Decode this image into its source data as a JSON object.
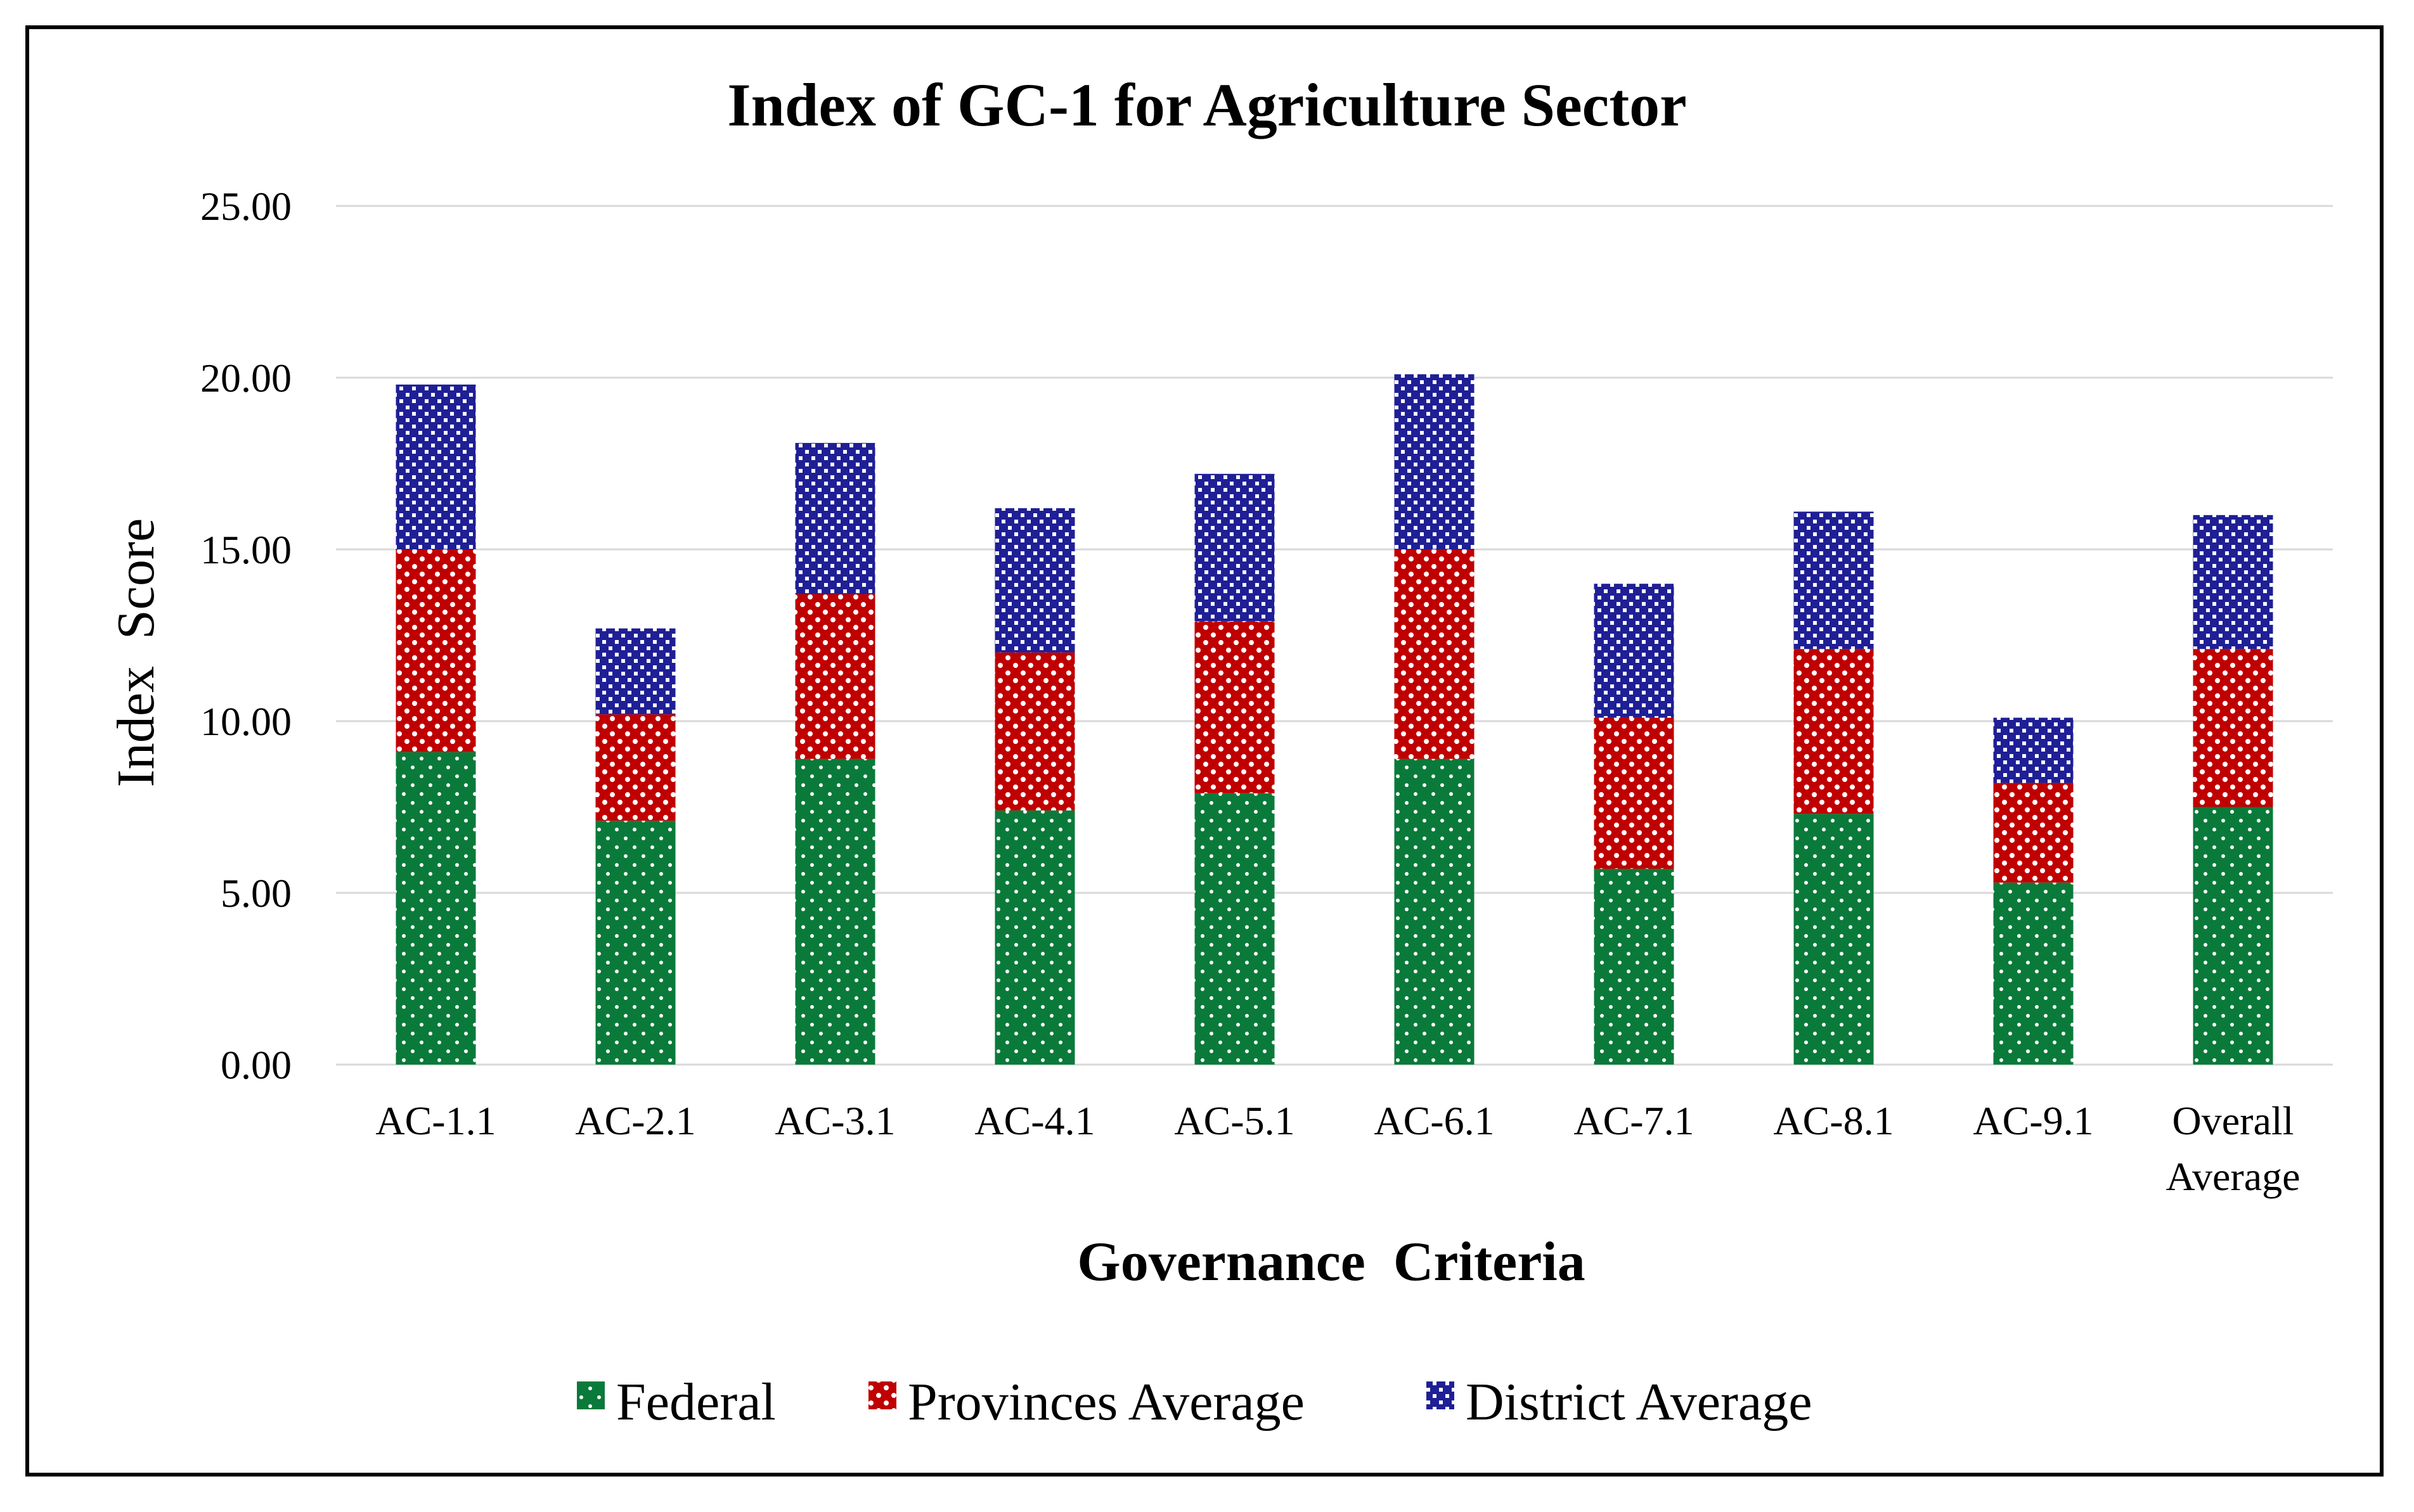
{
  "chart_data": {
    "type": "bar",
    "stacked": true,
    "title": "Index of GC-1 for Agriculture Sector",
    "xlabel": "Governance  Criteria",
    "ylabel": "Index  Score",
    "ylim": [
      0,
      25
    ],
    "yticks": [
      "0.00",
      "5.00",
      "10.00",
      "15.00",
      "20.00",
      "25.00"
    ],
    "categories": [
      "AC-1.1",
      "AC-2.1",
      "AC-3.1",
      "AC-4.1",
      "AC-5.1",
      "AC-6.1",
      "AC-7.1",
      "AC-8.1",
      "AC-9.1",
      "Overall Average"
    ],
    "category_lines": [
      [
        "AC-1.1"
      ],
      [
        "AC-2.1"
      ],
      [
        "AC-3.1"
      ],
      [
        "AC-4.1"
      ],
      [
        "AC-5.1"
      ],
      [
        "AC-6.1"
      ],
      [
        "AC-7.1"
      ],
      [
        "AC-8.1"
      ],
      [
        "AC-9.1"
      ],
      [
        "Overall",
        "Average"
      ]
    ],
    "series": [
      {
        "name": "Federal",
        "color": "#0a7a3a",
        "pattern": "dots",
        "values": [
          9.1,
          7.1,
          8.9,
          7.4,
          7.9,
          8.9,
          5.7,
          7.3,
          5.3,
          7.5
        ]
      },
      {
        "name": "Provinces Average",
        "color": "#c00000",
        "pattern": "checker",
        "values": [
          5.9,
          3.1,
          4.8,
          4.6,
          5.0,
          6.1,
          4.4,
          4.8,
          2.9,
          4.6
        ]
      },
      {
        "name": "District Average",
        "color": "#1f1f96",
        "pattern": "checker",
        "values": [
          4.8,
          2.5,
          4.4,
          4.2,
          4.3,
          5.1,
          3.9,
          4.0,
          1.9,
          3.9
        ]
      }
    ],
    "grid": true,
    "legend_position": "bottom"
  }
}
